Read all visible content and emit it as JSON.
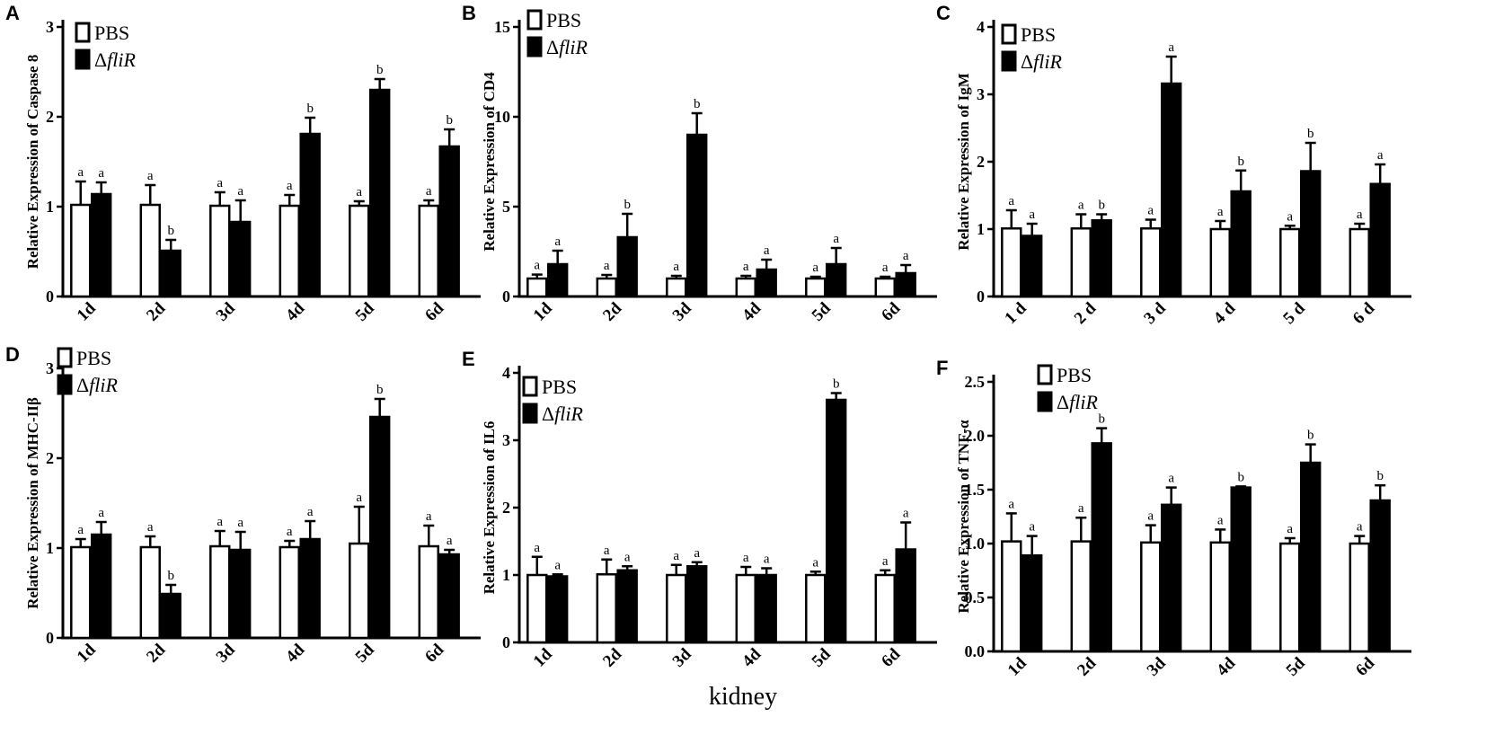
{
  "figure": {
    "shared_xlabel": "kidney"
  },
  "legend": {
    "pbs": "PBS",
    "mutant_symbol": "Δ",
    "mutant_name": "fliR"
  },
  "chart_data": [
    {
      "panel": "A",
      "type": "bar",
      "ylabel": "Relative Expression of Caspase 8",
      "categories": [
        "1d",
        "2d",
        "3d",
        "4d",
        "5d",
        "6d"
      ],
      "ylim": [
        0,
        3
      ],
      "yticks": [
        "0",
        "1",
        "2",
        "3"
      ],
      "ytick_values": [
        0,
        1,
        2,
        3
      ],
      "series": [
        {
          "name": "PBS",
          "values": [
            1.02,
            1.02,
            1.01,
            1.01,
            1.01,
            1.01
          ],
          "errors": [
            0.26,
            0.22,
            0.15,
            0.12,
            0.05,
            0.06
          ],
          "labels": [
            "a",
            "a",
            "a",
            "a",
            "a",
            "a"
          ]
        },
        {
          "name": "ΔfliR",
          "values": [
            1.14,
            0.51,
            0.83,
            1.81,
            2.3,
            1.67
          ],
          "errors": [
            0.13,
            0.12,
            0.24,
            0.18,
            0.12,
            0.19
          ],
          "labels": [
            "a",
            "b",
            "a",
            "b",
            "b",
            "b"
          ]
        }
      ]
    },
    {
      "panel": "B",
      "type": "bar",
      "ylabel": "Relative Expression of CD4",
      "categories": [
        "1d",
        "2d",
        "3d",
        "4d",
        "5d",
        "6d"
      ],
      "ylim": [
        0,
        15
      ],
      "yticks": [
        "0",
        "5",
        "10",
        "15"
      ],
      "ytick_values": [
        0,
        5,
        10,
        15
      ],
      "series": [
        {
          "name": "PBS",
          "values": [
            1.0,
            1.0,
            1.0,
            1.0,
            1.0,
            1.0
          ],
          "errors": [
            0.22,
            0.2,
            0.15,
            0.15,
            0.1,
            0.1
          ],
          "labels": [
            "a",
            "a",
            "a",
            "a",
            "a",
            "a"
          ]
        },
        {
          "name": "ΔfliR",
          "values": [
            1.8,
            3.3,
            9.0,
            1.5,
            1.8,
            1.3
          ],
          "errors": [
            0.75,
            1.3,
            1.2,
            0.55,
            0.9,
            0.45
          ],
          "labels": [
            "a",
            "b",
            "b",
            "a",
            "a",
            "a"
          ]
        }
      ]
    },
    {
      "panel": "C",
      "type": "bar",
      "ylabel": "Relative Expression of IgM",
      "categories": [
        "1 d",
        "2 d",
        "3 d",
        "4 d",
        "5 d",
        "6 d"
      ],
      "ylim": [
        0,
        4
      ],
      "yticks": [
        "0",
        "1",
        "2",
        "3",
        "4"
      ],
      "ytick_values": [
        0,
        1,
        2,
        3,
        4
      ],
      "series": [
        {
          "name": "PBS",
          "values": [
            1.01,
            1.01,
            1.01,
            1.0,
            1.0,
            1.0
          ],
          "errors": [
            0.27,
            0.21,
            0.13,
            0.12,
            0.05,
            0.08
          ],
          "labels": [
            "a",
            "a",
            "a",
            "a",
            "a",
            "a"
          ]
        },
        {
          "name": "ΔfliR",
          "values": [
            0.9,
            1.13,
            3.16,
            1.56,
            1.86,
            1.67
          ],
          "errors": [
            0.18,
            0.09,
            0.4,
            0.31,
            0.42,
            0.29
          ],
          "labels": [
            "a",
            "b",
            "a",
            "b",
            "b",
            "a"
          ]
        }
      ]
    },
    {
      "panel": "D",
      "type": "bar",
      "ylabel": "Relative Expression of  MHC-IIβ",
      "categories": [
        "1d",
        "2d",
        "3d",
        "4d",
        "5d",
        "6d"
      ],
      "ylim": [
        0,
        3
      ],
      "yticks": [
        "0",
        "1",
        "2",
        "3"
      ],
      "ytick_values": [
        0,
        1,
        2,
        3
      ],
      "series": [
        {
          "name": "PBS",
          "values": [
            1.01,
            1.01,
            1.02,
            1.01,
            1.05,
            1.02
          ],
          "errors": [
            0.09,
            0.12,
            0.17,
            0.07,
            0.41,
            0.23
          ],
          "labels": [
            "a",
            "a",
            "a",
            "a",
            "a",
            "a"
          ]
        },
        {
          "name": "ΔfliR",
          "values": [
            1.15,
            0.49,
            0.98,
            1.1,
            2.46,
            0.93
          ],
          "errors": [
            0.14,
            0.1,
            0.2,
            0.2,
            0.2,
            0.05
          ],
          "labels": [
            "a",
            "b",
            "a",
            "a",
            "b",
            "a"
          ]
        }
      ]
    },
    {
      "panel": "E",
      "type": "bar",
      "ylabel": "Relative Expression of IL6",
      "categories": [
        "1d",
        "2d",
        "3d",
        "4d",
        "5d",
        "6d"
      ],
      "ylim": [
        0,
        4
      ],
      "yticks": [
        "0",
        "1",
        "2",
        "3",
        "4"
      ],
      "ytick_values": [
        0,
        1,
        2,
        3,
        4
      ],
      "series": [
        {
          "name": "PBS",
          "values": [
            1.0,
            1.01,
            1.0,
            1.0,
            1.0,
            1.0
          ],
          "errors": [
            0.27,
            0.22,
            0.15,
            0.12,
            0.05,
            0.07
          ],
          "labels": [
            "a",
            "a",
            "a",
            "a",
            "a",
            "a"
          ]
        },
        {
          "name": "ΔfliR",
          "values": [
            0.98,
            1.07,
            1.13,
            1.0,
            3.6,
            1.38
          ],
          "errors": [
            0.03,
            0.06,
            0.06,
            0.1,
            0.1,
            0.4
          ],
          "labels": [
            "a",
            "a",
            "a",
            "a",
            "b",
            "a"
          ]
        }
      ]
    },
    {
      "panel": "F",
      "type": "bar",
      "ylabel": "Relative Expression of  TNF-α",
      "categories": [
        "1d",
        "2d",
        "3d",
        "4d",
        "5d",
        "6d"
      ],
      "ylim": [
        0,
        2.5
      ],
      "yticks": [
        "0.0",
        "0.5",
        "1.0",
        "1.5",
        "2.0",
        "2.5"
      ],
      "ytick_values": [
        0,
        0.5,
        1,
        1.5,
        2,
        2.5
      ],
      "series": [
        {
          "name": "PBS",
          "values": [
            1.02,
            1.02,
            1.01,
            1.01,
            1.0,
            1.0
          ],
          "errors": [
            0.26,
            0.22,
            0.16,
            0.12,
            0.05,
            0.07
          ],
          "labels": [
            "a",
            "a",
            "a",
            "a",
            "a",
            "a"
          ]
        },
        {
          "name": "ΔfliR",
          "values": [
            0.89,
            1.93,
            1.36,
            1.52,
            1.75,
            1.4
          ],
          "errors": [
            0.18,
            0.14,
            0.16,
            0.01,
            0.17,
            0.14
          ],
          "labels": [
            "a",
            "b",
            "a",
            "b",
            "b",
            "b"
          ]
        }
      ]
    }
  ]
}
